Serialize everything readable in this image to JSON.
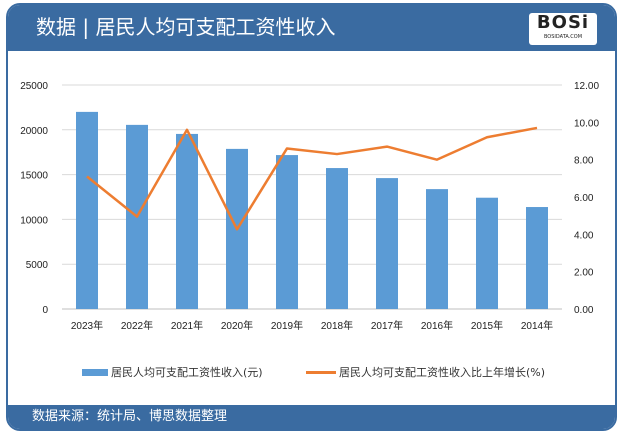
{
  "header": {
    "title": "数据 | 居民人均可支配工资性收入",
    "logo_text": "BOSi",
    "logo_sub": "BOSIDATA.COM"
  },
  "footer": {
    "source": "数据来源：统计局、博思数据整理"
  },
  "colors": {
    "frame": "#3a6ba1",
    "bar": "#5b9bd5",
    "line": "#ed7d31"
  },
  "chart_data": {
    "type": "bar+line",
    "categories": [
      "2023年",
      "2022年",
      "2021年",
      "2020年",
      "2019年",
      "2018年",
      "2017年",
      "2016年",
      "2015年",
      "2014年"
    ],
    "series": [
      {
        "name": "居民人均可支配工资性收入(元)",
        "type": "bar",
        "axis": "left",
        "values": [
          22000,
          20550,
          19540,
          17870,
          17180,
          15730,
          14610,
          13380,
          12420,
          11380
        ]
      },
      {
        "name": "居民人均可支配工资性收入比上年增长(%)",
        "type": "line",
        "axis": "right",
        "values": [
          7.1,
          4.95,
          9.6,
          4.27,
          8.6,
          8.3,
          8.7,
          8.0,
          9.2,
          9.7
        ]
      }
    ],
    "y_left": {
      "ylim": [
        0,
        25000
      ],
      "ticks": [
        "0",
        "5000",
        "10000",
        "15000",
        "20000",
        "25000"
      ]
    },
    "y_right": {
      "ylim": [
        0,
        12
      ],
      "ticks": [
        "0.00",
        "2.00",
        "4.00",
        "6.00",
        "8.00",
        "10.00",
        "12.00"
      ]
    },
    "grid": true,
    "legend": "bottom"
  }
}
